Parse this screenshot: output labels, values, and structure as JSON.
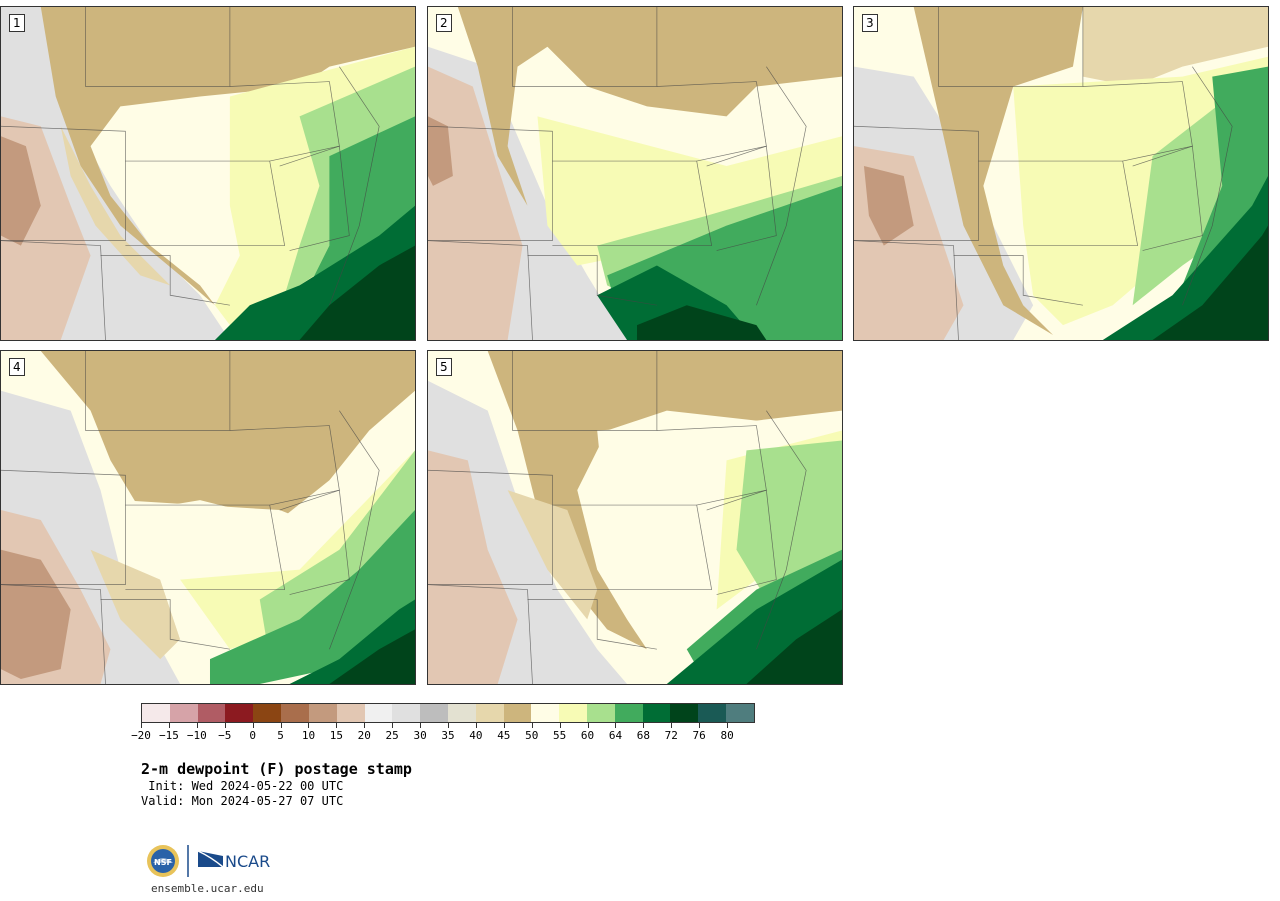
{
  "panels": [
    {
      "id": "1",
      "label": "1"
    },
    {
      "id": "2",
      "label": "2"
    },
    {
      "id": "3",
      "label": "3"
    },
    {
      "id": "4",
      "label": "4"
    },
    {
      "id": "5",
      "label": "5"
    }
  ],
  "colorbar": {
    "colors": [
      "#f5e9ea",
      "#d6a3a8",
      "#b05c64",
      "#8c1a20",
      "#8b4513",
      "#a96e4c",
      "#c39a7e",
      "#e2c7b3",
      "#f0f0f0",
      "#e0e0e0",
      "#bdbdbd",
      "#e3e1d1",
      "#e6d7ac",
      "#cdb57d",
      "#fffde6",
      "#f7fbb5",
      "#a8e08e",
      "#41ab5d",
      "#006d35",
      "#00441b",
      "#1a5a55",
      "#4f7d7e"
    ],
    "tick_labels": [
      "−20",
      "−15",
      "−10",
      "−5",
      "0",
      "5",
      "10",
      "15",
      "20",
      "25",
      "30",
      "35",
      "40",
      "45",
      "50",
      "55",
      "60",
      "64",
      "68",
      "72",
      "76",
      "80"
    ]
  },
  "title": "2-m dewpoint (F) postage stamp",
  "init": " Init: Wed 2024-05-22 00 UTC",
  "valid": "Valid: Mon 2024-05-27 07 UTC",
  "logos": {
    "nsf": "NSF",
    "ncar": "NCAR"
  },
  "site": "ensemble.ucar.edu"
}
